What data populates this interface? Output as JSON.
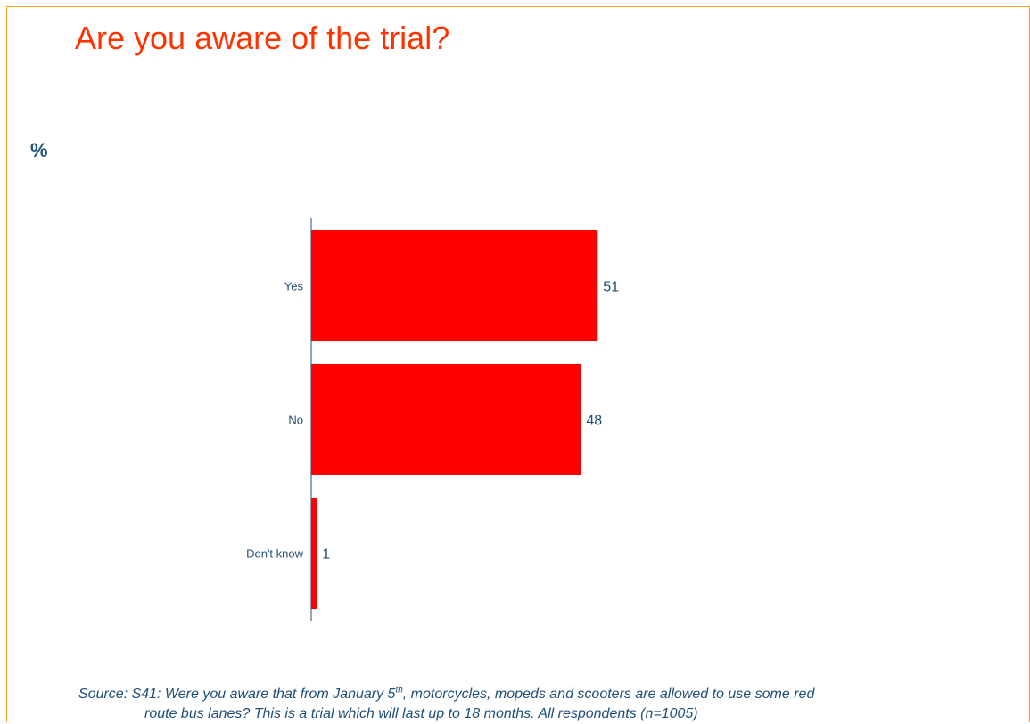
{
  "title": "Are you aware of the trial?",
  "unit_label": "%",
  "source": {
    "part1": "Source: S41: Were you aware that from January 5",
    "sup": "th",
    "part2": ", motorcycles, mopeds and scooters are allowed to use some red",
    "line2": "route bus lanes? This is a trial which will last up to 18 months. All respondents (n=1005)"
  },
  "colors": {
    "bar": "#ff0000",
    "title": "#ff3300",
    "text": "#1f4e79",
    "axis": "#1f4e79",
    "border": "#f5a623"
  },
  "chart_data": {
    "type": "bar",
    "orientation": "horizontal",
    "categories": [
      "Yes",
      "No",
      "Don't know"
    ],
    "values": [
      51,
      48,
      1
    ],
    "xlim": [
      0,
      100
    ],
    "grid": false,
    "legend": "none"
  }
}
